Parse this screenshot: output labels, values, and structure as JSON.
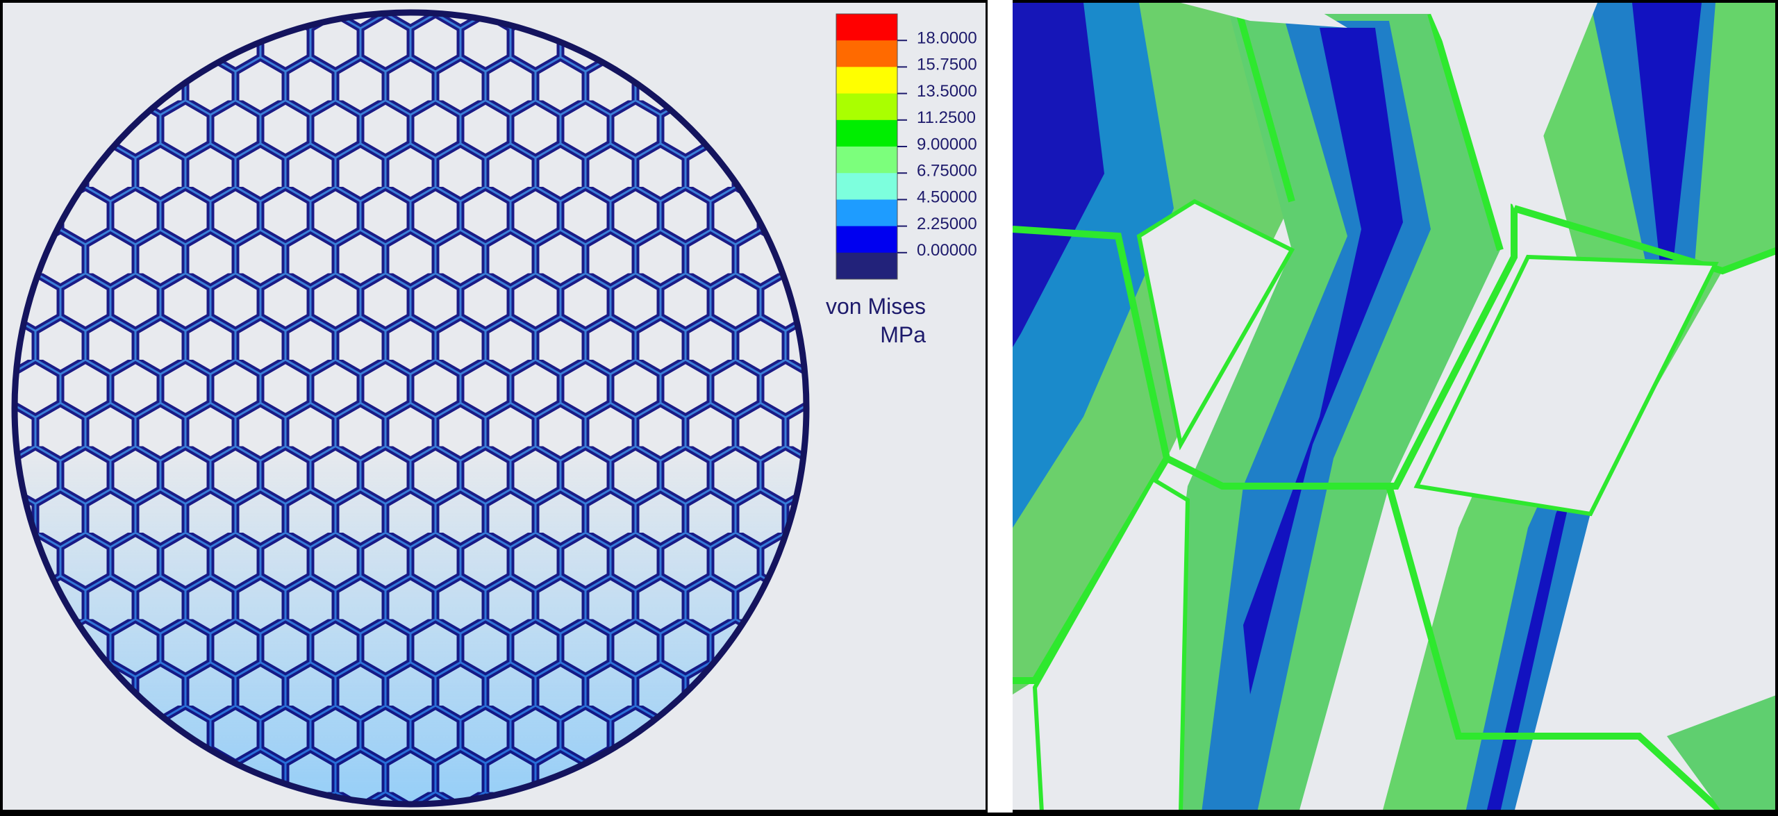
{
  "legend": {
    "title": "von Mises",
    "unit": "MPa",
    "colors": [
      "#ff0000",
      "#ff6a00",
      "#ffff00",
      "#aaff00",
      "#00ee00",
      "#7cff7c",
      "#7dffdd",
      "#1e9cff",
      "#0000f0",
      "#22227a"
    ],
    "levels": [
      {
        "value": 18,
        "label": "18.0000"
      },
      {
        "value": 15.75,
        "label": "15.7500"
      },
      {
        "value": 13.5,
        "label": "13.5000"
      },
      {
        "value": 11.25,
        "label": "11.2500"
      },
      {
        "value": 9,
        "label": "9.00000"
      },
      {
        "value": 6.75,
        "label": "6.75000"
      },
      {
        "value": 4.5,
        "label": "4.50000"
      },
      {
        "value": 2.25,
        "label": "2.25000"
      },
      {
        "value": 0,
        "label": "0.00000"
      }
    ]
  }
}
